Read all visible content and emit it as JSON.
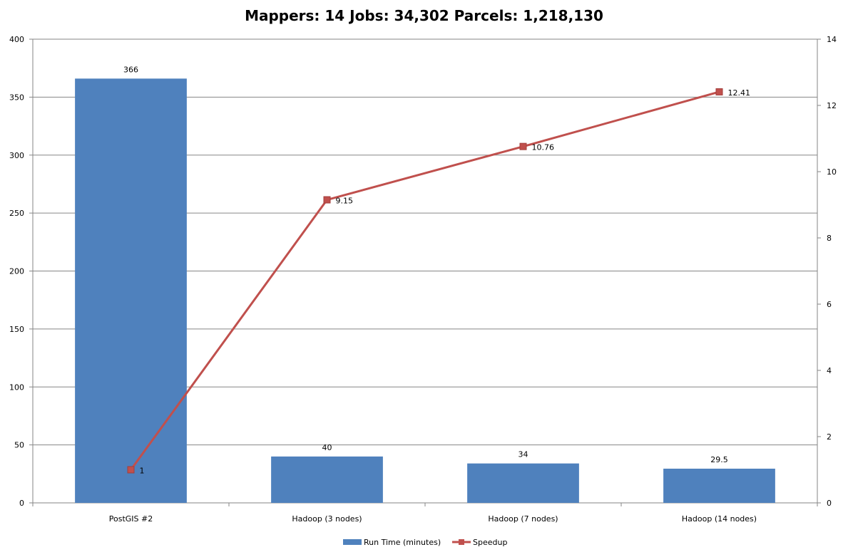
{
  "chart_data": {
    "type": "bar",
    "title": "Mappers: 14   Jobs: 34,302    Parcels: 1,218,130",
    "categories": [
      "PostGIS #2",
      "Hadoop (3 nodes)",
      "Hadoop (7 nodes)",
      "Hadoop (14 nodes)"
    ],
    "series": [
      {
        "name": "Run Time (minutes)",
        "type": "bar",
        "axis": "left",
        "color": "#4F81BD",
        "values": [
          366,
          40,
          34,
          29.5
        ],
        "labels": [
          "366",
          "40",
          "34",
          "29.5"
        ]
      },
      {
        "name": "Speedup",
        "type": "line",
        "axis": "right",
        "color": "#C0504D",
        "values": [
          1,
          9.15,
          10.76,
          12.41
        ],
        "labels": [
          "1",
          "9.15",
          "10.76",
          "12.41"
        ]
      }
    ],
    "ylim": [
      0,
      400
    ],
    "y2lim": [
      0,
      14
    ],
    "y_ticks": [
      0,
      50,
      100,
      150,
      200,
      250,
      300,
      350,
      400
    ],
    "y2_ticks": [
      0,
      2,
      4,
      6,
      8,
      10,
      12,
      14
    ],
    "grid": true,
    "legend_position": "bottom"
  }
}
